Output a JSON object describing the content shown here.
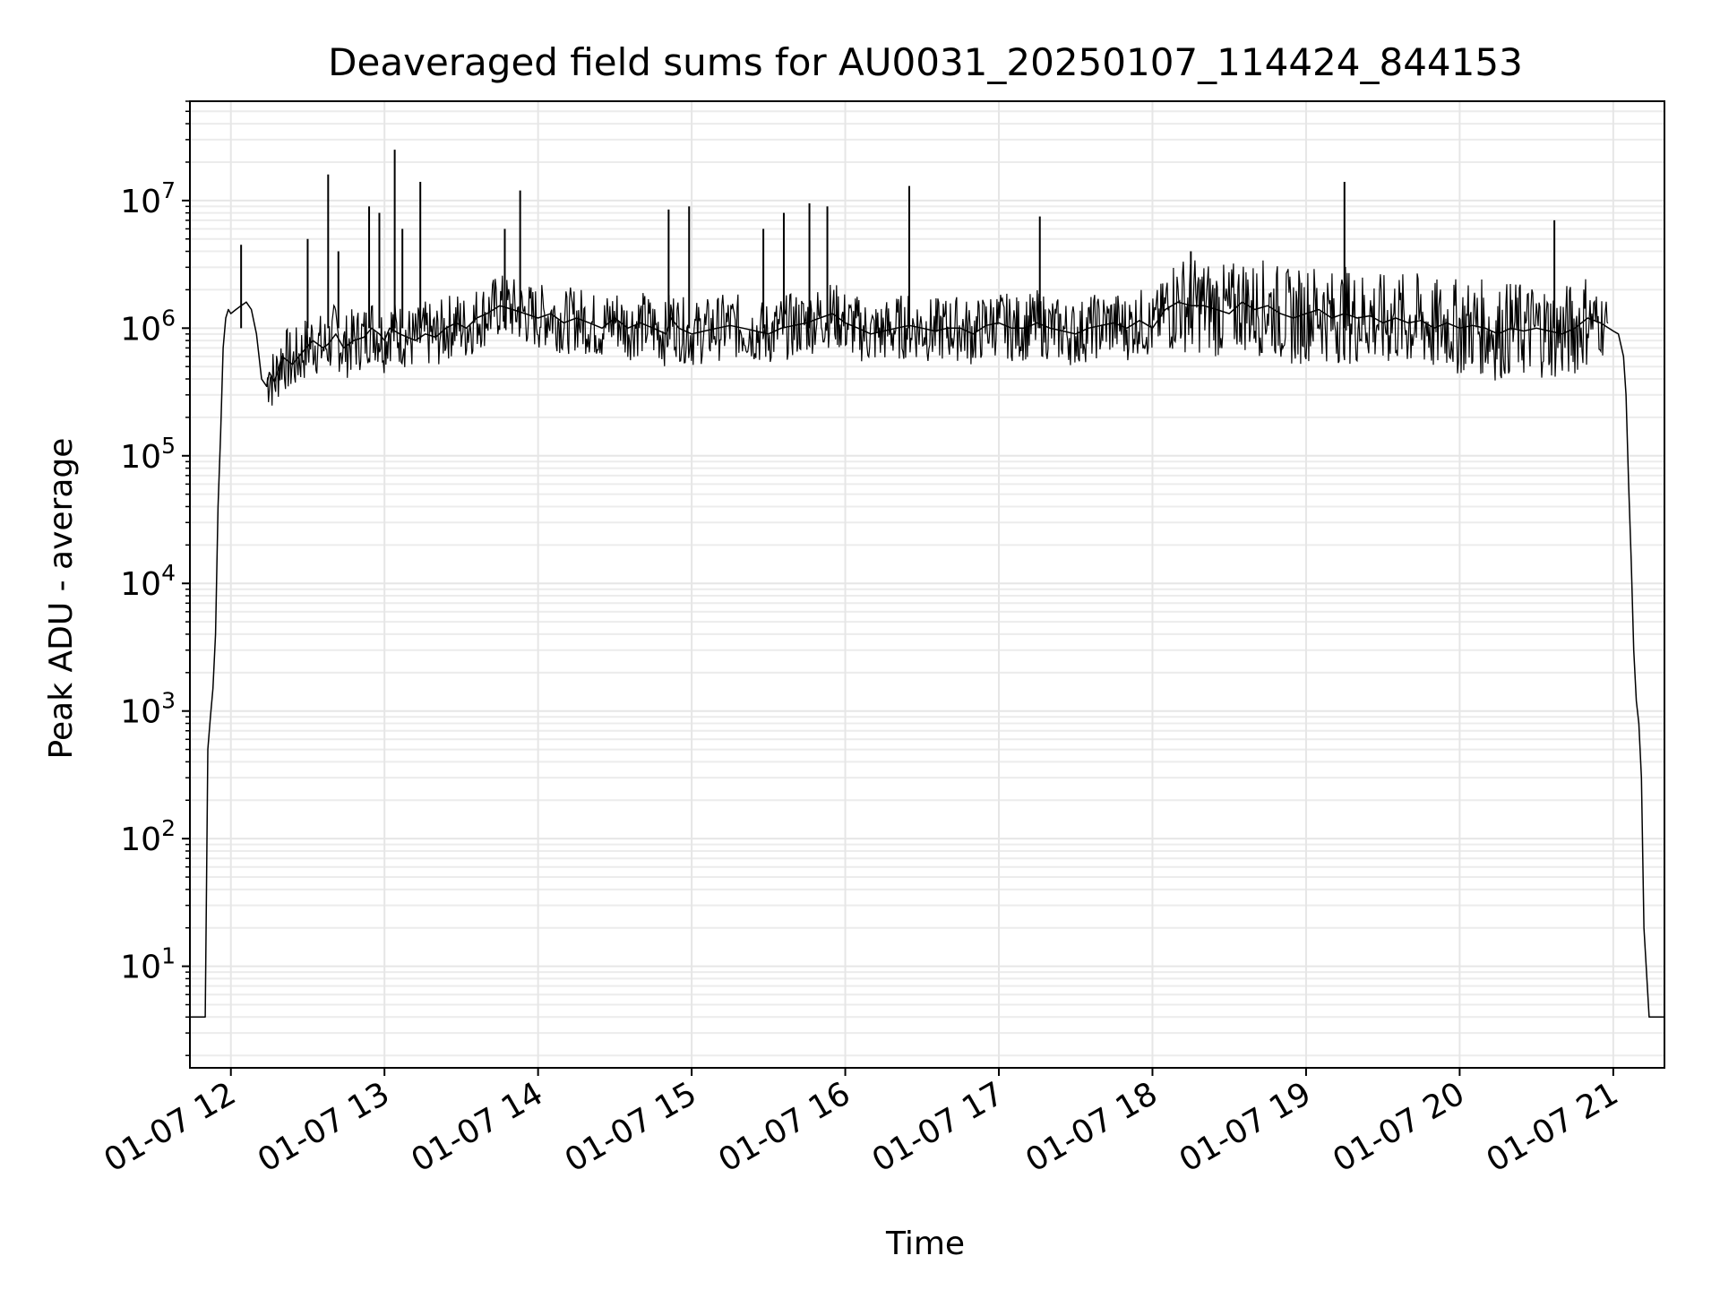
{
  "chart_data": {
    "type": "line",
    "title": "Deaveraged field sums for AU0031_20250107_114424_844153",
    "xlabel": "Time",
    "ylabel": "Peak ADU - average",
    "yscale": "log",
    "grid": true,
    "ylim": [
      1.6,
      60000000
    ],
    "xlim": [
      "01-07 11:44",
      "01-07 21:20"
    ],
    "x_ticks": [
      {
        "label": "01-07 12",
        "value": "01-07 12:00"
      },
      {
        "label": "01-07 13",
        "value": "01-07 13:00"
      },
      {
        "label": "01-07 14",
        "value": "01-07 14:00"
      },
      {
        "label": "01-07 15",
        "value": "01-07 15:00"
      },
      {
        "label": "01-07 16",
        "value": "01-07 16:00"
      },
      {
        "label": "01-07 17",
        "value": "01-07 17:00"
      },
      {
        "label": "01-07 18",
        "value": "01-07 18:00"
      },
      {
        "label": "01-07 19",
        "value": "01-07 19:00"
      },
      {
        "label": "01-07 20",
        "value": "01-07 20:00"
      },
      {
        "label": "01-07 21",
        "value": "01-07 21:00"
      }
    ],
    "y_ticks": [
      {
        "base": "10",
        "exp": "1",
        "value": 10
      },
      {
        "base": "10",
        "exp": "2",
        "value": 100
      },
      {
        "base": "10",
        "exp": "3",
        "value": 1000
      },
      {
        "base": "10",
        "exp": "4",
        "value": 10000
      },
      {
        "base": "10",
        "exp": "5",
        "value": 100000
      },
      {
        "base": "10",
        "exp": "6",
        "value": 1000000
      },
      {
        "base": "10",
        "exp": "7",
        "value": 10000000
      }
    ],
    "series": [
      {
        "color": "#000000",
        "x": [
          "01-07 11:44",
          "01-07 11:46",
          "01-07 11:48",
          "01-07 11:50",
          "01-07 11:51",
          "01-07 11:52",
          "01-07 11:53",
          "01-07 11:54",
          "01-07 11:55",
          "01-07 11:56",
          "01-07 11:57",
          "01-07 11:58",
          "01-07 11:59",
          "01-07 12:00",
          "01-07 12:02",
          "01-07 12:04",
          "01-07 12:06",
          "01-07 12:08",
          "01-07 12:10",
          "01-07 12:12",
          "01-07 12:14",
          "01-07 12:15",
          "01-07 12:17",
          "01-07 12:20",
          "01-07 12:24",
          "01-07 12:28",
          "01-07 12:32",
          "01-07 12:36",
          "01-07 12:38",
          "01-07 12:41",
          "01-07 12:44",
          "01-07 12:48",
          "01-07 12:52",
          "01-07 12:55",
          "01-07 12:58",
          "01-07 13:00",
          "01-07 13:02",
          "01-07 13:04",
          "01-07 13:06",
          "01-07 13:09",
          "01-07 13:12",
          "01-07 13:16",
          "01-07 13:20",
          "01-07 13:24",
          "01-07 13:28",
          "01-07 13:32",
          "01-07 13:36",
          "01-07 13:40",
          "01-07 13:45",
          "01-07 13:50",
          "01-07 13:55",
          "01-07 14:00",
          "01-07 14:05",
          "01-07 14:10",
          "01-07 14:15",
          "01-07 14:20",
          "01-07 14:25",
          "01-07 14:30",
          "01-07 14:35",
          "01-07 14:40",
          "01-07 14:45",
          "01-07 14:50",
          "01-07 14:52",
          "01-07 14:55",
          "01-07 15:00",
          "01-07 15:05",
          "01-07 15:10",
          "01-07 15:15",
          "01-07 15:20",
          "01-07 15:25",
          "01-07 15:30",
          "01-07 15:35",
          "01-07 15:40",
          "01-07 15:45",
          "01-07 15:50",
          "01-07 15:55",
          "01-07 16:00",
          "01-07 16:05",
          "01-07 16:10",
          "01-07 16:15",
          "01-07 16:20",
          "01-07 16:25",
          "01-07 16:30",
          "01-07 16:35",
          "01-07 16:40",
          "01-07 16:45",
          "01-07 16:50",
          "01-07 16:55",
          "01-07 17:00",
          "01-07 17:05",
          "01-07 17:10",
          "01-07 17:15",
          "01-07 17:20",
          "01-07 17:25",
          "01-07 17:30",
          "01-07 17:35",
          "01-07 17:40",
          "01-07 17:45",
          "01-07 17:50",
          "01-07 17:55",
          "01-07 18:00",
          "01-07 18:05",
          "01-07 18:10",
          "01-07 18:15",
          "01-07 18:20",
          "01-07 18:25",
          "01-07 18:30",
          "01-07 18:35",
          "01-07 18:40",
          "01-07 18:45",
          "01-07 18:50",
          "01-07 18:55",
          "01-07 19:00",
          "01-07 19:05",
          "01-07 19:10",
          "01-07 19:15",
          "01-07 19:20",
          "01-07 19:25",
          "01-07 19:30",
          "01-07 19:35",
          "01-07 19:40",
          "01-07 19:45",
          "01-07 19:50",
          "01-07 19:55",
          "01-07 20:00",
          "01-07 20:05",
          "01-07 20:10",
          "01-07 20:15",
          "01-07 20:20",
          "01-07 20:25",
          "01-07 20:30",
          "01-07 20:35",
          "01-07 20:40",
          "01-07 20:45",
          "01-07 20:50",
          "01-07 20:55",
          "01-07 21:00",
          "01-07 21:02",
          "01-07 21:04",
          "01-07 21:05",
          "01-07 21:06",
          "01-07 21:07",
          "01-07 21:08",
          "01-07 21:09",
          "01-07 21:10",
          "01-07 21:11",
          "01-07 21:12",
          "01-07 21:14",
          "01-07 21:17",
          "01-07 21:20"
        ],
        "y": [
          4,
          4,
          4,
          4,
          500,
          900,
          1500,
          4000,
          40000,
          150000,
          700000,
          1200000,
          1400000,
          1300000,
          1400000,
          1500000,
          1600000,
          1400000,
          900000,
          400000,
          350000,
          450000,
          380000,
          600000,
          520000,
          650000,
          800000,
          700000,
          750000,
          900000,
          700000,
          800000,
          850000,
          1000000,
          900000,
          800000,
          1000000,
          950000,
          900000,
          850000,
          800000,
          900000,
          850000,
          1000000,
          1100000,
          1000000,
          1200000,
          1300000,
          1500000,
          1400000,
          1300000,
          1200000,
          1300000,
          1100000,
          1200000,
          1100000,
          1000000,
          1200000,
          1000000,
          1100000,
          1000000,
          900000,
          1200000,
          1000000,
          900000,
          950000,
          1000000,
          1050000,
          1000000,
          950000,
          900000,
          1000000,
          1050000,
          1100000,
          1200000,
          1300000,
          1100000,
          1000000,
          900000,
          950000,
          1000000,
          1050000,
          1000000,
          950000,
          1000000,
          1000000,
          900000,
          1050000,
          1100000,
          1000000,
          1000000,
          1100000,
          1000000,
          950000,
          900000,
          1000000,
          1050000,
          1100000,
          1000000,
          1150000,
          1000000,
          1400000,
          1600000,
          1500000,
          1500000,
          1400000,
          1300000,
          1600000,
          1400000,
          1500000,
          1300000,
          1200000,
          1300000,
          1400000,
          1200000,
          1300000,
          1200000,
          1250000,
          1100000,
          1200000,
          1100000,
          1150000,
          1000000,
          1100000,
          1000000,
          1050000,
          1000000,
          900000,
          1000000,
          950000,
          1000000,
          950000,
          900000,
          1000000,
          1200000,
          1100000,
          950000,
          900000,
          600000,
          300000,
          60000,
          15000,
          3000,
          1200,
          800,
          300,
          20,
          4,
          4,
          4
        ]
      }
    ],
    "spikes": [
      {
        "x": "01-07 12:04",
        "y": 4500000
      },
      {
        "x": "01-07 12:30",
        "y": 5000000
      },
      {
        "x": "01-07 12:38",
        "y": 16000000
      },
      {
        "x": "01-07 12:42",
        "y": 4000000
      },
      {
        "x": "01-07 12:54",
        "y": 9000000
      },
      {
        "x": "01-07 12:58",
        "y": 8000000
      },
      {
        "x": "01-07 13:04",
        "y": 25000000
      },
      {
        "x": "01-07 13:07",
        "y": 6000000
      },
      {
        "x": "01-07 13:14",
        "y": 14000000
      },
      {
        "x": "01-07 13:47",
        "y": 6000000
      },
      {
        "x": "01-07 13:53",
        "y": 12000000
      },
      {
        "x": "01-07 14:51",
        "y": 8500000
      },
      {
        "x": "01-07 14:59",
        "y": 9000000
      },
      {
        "x": "01-07 15:28",
        "y": 6000000
      },
      {
        "x": "01-07 15:36",
        "y": 8000000
      },
      {
        "x": "01-07 15:46",
        "y": 9500000
      },
      {
        "x": "01-07 15:53",
        "y": 9000000
      },
      {
        "x": "01-07 16:25",
        "y": 13000000
      },
      {
        "x": "01-07 17:16",
        "y": 7500000
      },
      {
        "x": "01-07 18:15",
        "y": 4000000
      },
      {
        "x": "01-07 19:15",
        "y": 14000000
      },
      {
        "x": "01-07 20:37",
        "y": 7000000
      }
    ]
  }
}
